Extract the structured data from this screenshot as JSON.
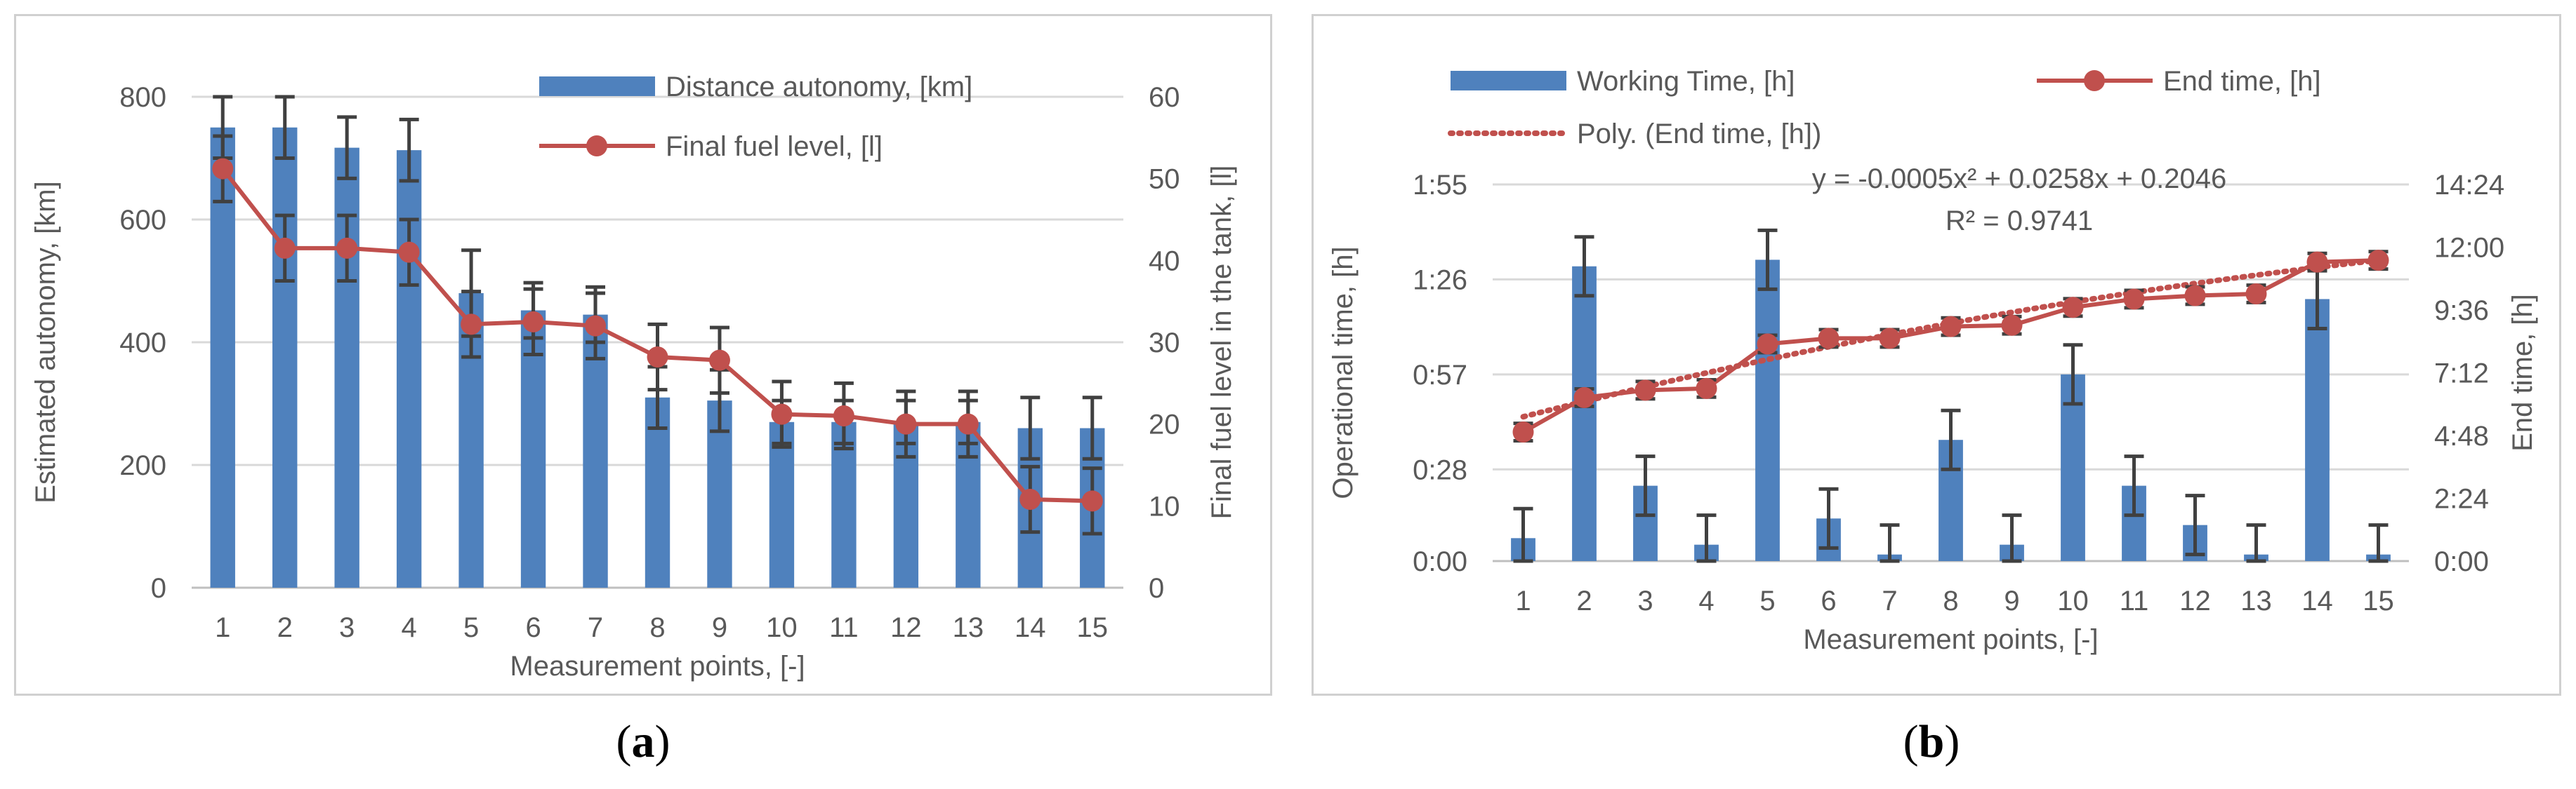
{
  "chart_data": [
    {
      "id": "a",
      "type": "bar+line",
      "caption": {
        "open": "(",
        "letter": "a",
        "close": ")"
      },
      "xlabel": "Measurement points, [-]",
      "ylabel_left": "Estimated autonomy, [km]",
      "ylabel_right": "Final fuel level in the tank, [l]",
      "categories": [
        "1",
        "2",
        "3",
        "4",
        "5",
        "6",
        "7",
        "8",
        "9",
        "10",
        "11",
        "12",
        "13",
        "14",
        "15"
      ],
      "ylim_left": [
        0,
        800
      ],
      "ylim_right": [
        0,
        60
      ],
      "yticks_left": [
        0,
        200,
        400,
        600,
        800
      ],
      "yticks_left_labels": [
        "0",
        "200",
        "400",
        "600",
        "800"
      ],
      "yticks_right": [
        0,
        10,
        20,
        30,
        40,
        50,
        60
      ],
      "yticks_right_labels": [
        "0",
        "10",
        "20",
        "30",
        "40",
        "50",
        "60"
      ],
      "grid": true,
      "legend_position": "top-right",
      "series": [
        {
          "name": "Distance autonomy, [km]",
          "kind": "bar",
          "axis": "left",
          "color": "#4f81bd",
          "values": [
            750,
            750,
            717,
            713,
            480,
            452,
            445,
            310,
            305,
            270,
            270,
            270,
            270,
            260,
            260
          ],
          "errors": [
            50,
            50,
            50,
            50,
            70,
            45,
            45,
            50,
            50,
            35,
            35,
            35,
            35,
            50,
            50
          ]
        },
        {
          "name": "Final fuel level, [l]",
          "kind": "line",
          "axis": "right",
          "color": "#c0504d",
          "values": [
            51.2,
            41.5,
            41.5,
            41.0,
            32.2,
            32.5,
            32.0,
            28.2,
            27.8,
            21.2,
            21.0,
            20.0,
            20.0,
            10.8,
            10.6
          ],
          "errors": [
            4,
            4,
            4,
            4,
            4,
            4,
            4,
            4,
            4,
            4,
            4,
            4,
            4,
            4,
            4
          ]
        }
      ]
    },
    {
      "id": "b",
      "type": "bar+line",
      "caption": {
        "open": "(",
        "letter": "b",
        "close": ")"
      },
      "xlabel": "Measurement points, [-]",
      "ylabel_left": "Operational time, [h]",
      "ylabel_right": "End time, [h]",
      "categories": [
        "1",
        "2",
        "3",
        "4",
        "5",
        "6",
        "7",
        "8",
        "9",
        "10",
        "11",
        "12",
        "13",
        "14",
        "15"
      ],
      "ylim_left_min": [
        0,
        115
      ],
      "ylim_right_min": [
        0,
        864
      ],
      "yticks_left_min": [
        0,
        28,
        57,
        86,
        115
      ],
      "yticks_left_labels": [
        "0:00",
        "0:28",
        "0:57",
        "1:26",
        "1:55"
      ],
      "yticks_right_min": [
        0,
        144,
        288,
        432,
        576,
        720,
        864
      ],
      "yticks_right_labels": [
        "0:00",
        "2:24",
        "4:48",
        "7:12",
        "9:36",
        "12:00",
        "14:24"
      ],
      "grid": true,
      "legend_position": "top",
      "series": [
        {
          "name": "Working Time, [h]",
          "kind": "bar",
          "axis": "left",
          "unit": "minutes",
          "color": "#4f81bd",
          "values": [
            7,
            90,
            23,
            5,
            92,
            13,
            2,
            37,
            5,
            57,
            23,
            11,
            2,
            80,
            2
          ],
          "errors": [
            9,
            9,
            9,
            9,
            9,
            9,
            9,
            9,
            9,
            9,
            9,
            9,
            9,
            9,
            9
          ]
        },
        {
          "name": "End time, [h]",
          "kind": "line",
          "axis": "right",
          "unit": "minutes",
          "color": "#c0504d",
          "values": [
            296,
            375,
            392,
            396,
            498,
            511,
            511,
            538,
            541,
            582,
            601,
            609,
            613,
            686,
            690
          ],
          "errors": [
            20,
            20,
            20,
            20,
            20,
            20,
            20,
            20,
            20,
            20,
            20,
            20,
            20,
            20,
            20
          ]
        },
        {
          "name": "Poly. (End time, [h])",
          "kind": "trendline",
          "axis": "right",
          "color": "#c0504d"
        }
      ],
      "trend_equation": "y = -0.0005x² + 0.0258x + 0.2046",
      "trend_r2": "R² = 0.9741"
    }
  ]
}
